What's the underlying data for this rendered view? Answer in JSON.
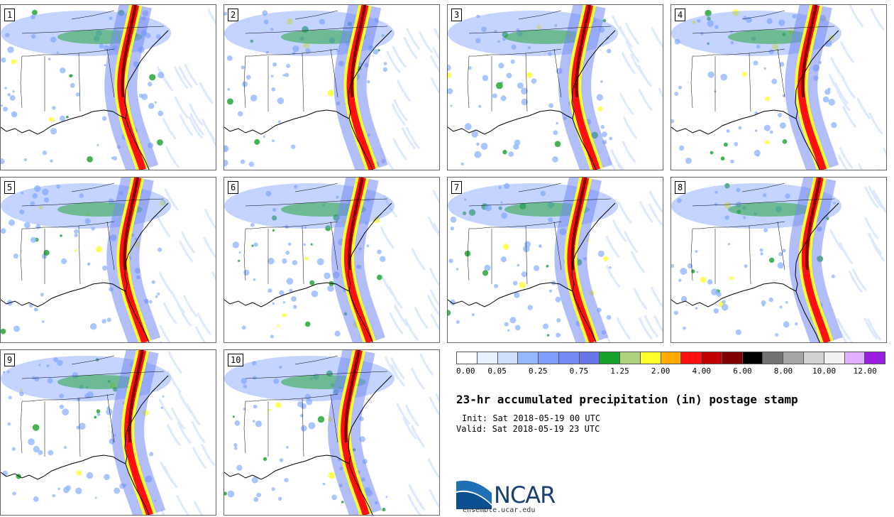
{
  "panels": [
    {
      "label": "1"
    },
    {
      "label": "2"
    },
    {
      "label": "3"
    },
    {
      "label": "4"
    },
    {
      "label": "5"
    },
    {
      "label": "6"
    },
    {
      "label": "7"
    },
    {
      "label": "8"
    },
    {
      "label": "9"
    },
    {
      "label": "10"
    }
  ],
  "legend": {
    "colors": [
      "#ffffff",
      "#e8f2ff",
      "#cfe0ff",
      "#94b8ff",
      "#7d9dff",
      "#7389f5",
      "#6a75ea",
      "#16a12a",
      "#b1d27c",
      "#ffff2c",
      "#ffaa00",
      "#ff1010",
      "#c40000",
      "#7f0000",
      "#000000",
      "#727272",
      "#a5a5a5",
      "#d2d2d2",
      "#f2f2f2",
      "#e0b0ff",
      "#9a1ee0"
    ],
    "labels": [
      "0.00",
      "0.05",
      "0.25",
      "0.75",
      "1.25",
      "2.00",
      "4.00",
      "6.00",
      "8.00",
      "10.00",
      "12.00"
    ]
  },
  "title": "23-hr accumulated precipitation (in) postage stamp",
  "init_text": "Init: Sat 2018-05-19 00 UTC",
  "valid_text": "Valid: Sat 2018-05-19 23 UTC",
  "logo_text": "NCAR",
  "logo_url": "ensemble.ucar.edu"
}
